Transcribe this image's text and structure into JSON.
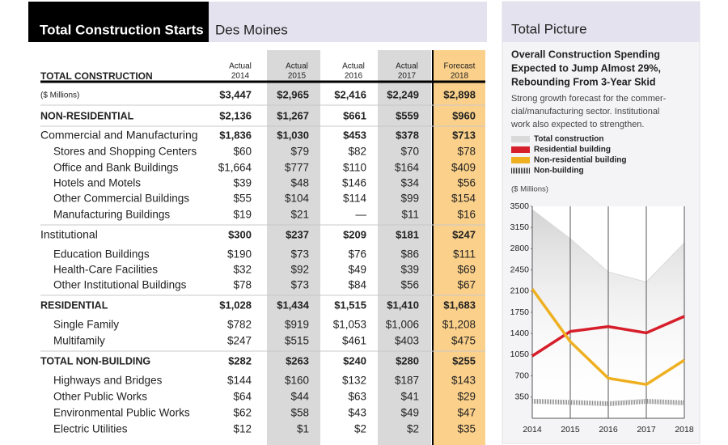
{
  "header": {
    "title": "Total Construction Starts",
    "location": "Des Moines"
  },
  "table": {
    "label": "TOTAL CONSTRUCTION",
    "columns": [
      {
        "kind": "Actual",
        "year": "2014"
      },
      {
        "kind": "Actual",
        "year": "2015"
      },
      {
        "kind": "Actual",
        "year": "2016"
      },
      {
        "kind": "Actual",
        "year": "2017"
      },
      {
        "kind": "Forecast",
        "year": "2018"
      }
    ],
    "rows": [
      {
        "label": "($ Millions)",
        "values": [
          "$3,447",
          "$2,965",
          "$2,416",
          "$2,249",
          "$2,898"
        ]
      },
      {
        "label": "NON-RESIDENTIAL",
        "values": [
          "$2,136",
          "$1,267",
          "$661",
          "$559",
          "$960"
        ]
      },
      {
        "label": "Commercial and Manufacturing",
        "values": [
          "$1,836",
          "$1,030",
          "$453",
          "$378",
          "$713"
        ]
      },
      {
        "label": "Stores and Shopping Centers",
        "values": [
          "$60",
          "$79",
          "$82",
          "$70",
          "$78"
        ]
      },
      {
        "label": "Office and Bank Buildings",
        "values": [
          "$1,664",
          "$777",
          "$110",
          "$164",
          "$409"
        ]
      },
      {
        "label": "Hotels and Motels",
        "values": [
          "$39",
          "$48",
          "$146",
          "$34",
          "$56"
        ]
      },
      {
        "label": "Other Commercial Buildings",
        "values": [
          "$55",
          "$104",
          "$114",
          "$99",
          "$154"
        ]
      },
      {
        "label": "Manufacturing Buildings",
        "values": [
          "$19",
          "$21",
          "—",
          "$11",
          "$16"
        ]
      },
      {
        "label": "Institutional",
        "values": [
          "$300",
          "$237",
          "$209",
          "$181",
          "$247"
        ]
      },
      {
        "label": "Education Buildings",
        "values": [
          "$190",
          "$73",
          "$76",
          "$86",
          "$111"
        ]
      },
      {
        "label": "Health-Care Facilities",
        "values": [
          "$32",
          "$92",
          "$49",
          "$39",
          "$69"
        ]
      },
      {
        "label": "Other Institutional Buildings",
        "values": [
          "$78",
          "$73",
          "$84",
          "$56",
          "$67"
        ]
      },
      {
        "label": "RESIDENTIAL",
        "values": [
          "$1,028",
          "$1,434",
          "$1,515",
          "$1,410",
          "$1,683"
        ]
      },
      {
        "label": "Single Family",
        "values": [
          "$782",
          "$919",
          "$1,053",
          "$1,006",
          "$1,208"
        ]
      },
      {
        "label": "Multifamily",
        "values": [
          "$247",
          "$515",
          "$461",
          "$403",
          "$475"
        ]
      },
      {
        "label": "TOTAL NON-BUILDING",
        "values": [
          "$282",
          "$263",
          "$240",
          "$280",
          "$255"
        ]
      },
      {
        "label": "Highways and Bridges",
        "values": [
          "$144",
          "$160",
          "$132",
          "$187",
          "$143"
        ]
      },
      {
        "label": "Other Public Works",
        "values": [
          "$64",
          "$44",
          "$63",
          "$41",
          "$29"
        ]
      },
      {
        "label": "Environmental Public Works",
        "values": [
          "$62",
          "$58",
          "$43",
          "$49",
          "$47"
        ]
      },
      {
        "label": "Electric Utilities",
        "values": [
          "$12",
          "$1",
          "$2",
          "$2",
          "$35"
        ]
      }
    ]
  },
  "panel": {
    "title": "Total Picture",
    "headline": [
      "Overall Construction Spending",
      "Expected to Jump Almost 29%,",
      "Rebounding From 3-Year Skid"
    ],
    "text": [
      "Strong growth forecast for the commer-",
      "cial/manufacturing sector. Institutional",
      "work also expected to strengthen."
    ]
  },
  "chart_data": {
    "type": "line",
    "ylabel": "($ Millions)",
    "x": [
      2014,
      2015,
      2016,
      2017,
      2018
    ],
    "xlim": [
      2014,
      2018
    ],
    "xticks": [
      2014,
      2015,
      2016,
      2017,
      2018
    ],
    "ylim": [
      0,
      3500
    ],
    "yticks": [
      350,
      700,
      1050,
      1400,
      1750,
      2100,
      2450,
      2800,
      3150,
      3500
    ],
    "grid": "x",
    "series": [
      {
        "name": "Total construction",
        "color": "#d9d9d9",
        "kind": "area",
        "values": [
          3447,
          2965,
          2416,
          2249,
          2898
        ]
      },
      {
        "name": "Residential building",
        "color": "#d61f2b",
        "kind": "line",
        "values": [
          1028,
          1434,
          1515,
          1410,
          1683
        ]
      },
      {
        "name": "Non-residential building",
        "color": "#eeb021",
        "kind": "line",
        "values": [
          2136,
          1267,
          661,
          559,
          960
        ]
      },
      {
        "name": "Non-building",
        "color": "#8a8a8a",
        "kind": "hatch",
        "values": [
          282,
          263,
          240,
          280,
          255
        ]
      }
    ]
  }
}
